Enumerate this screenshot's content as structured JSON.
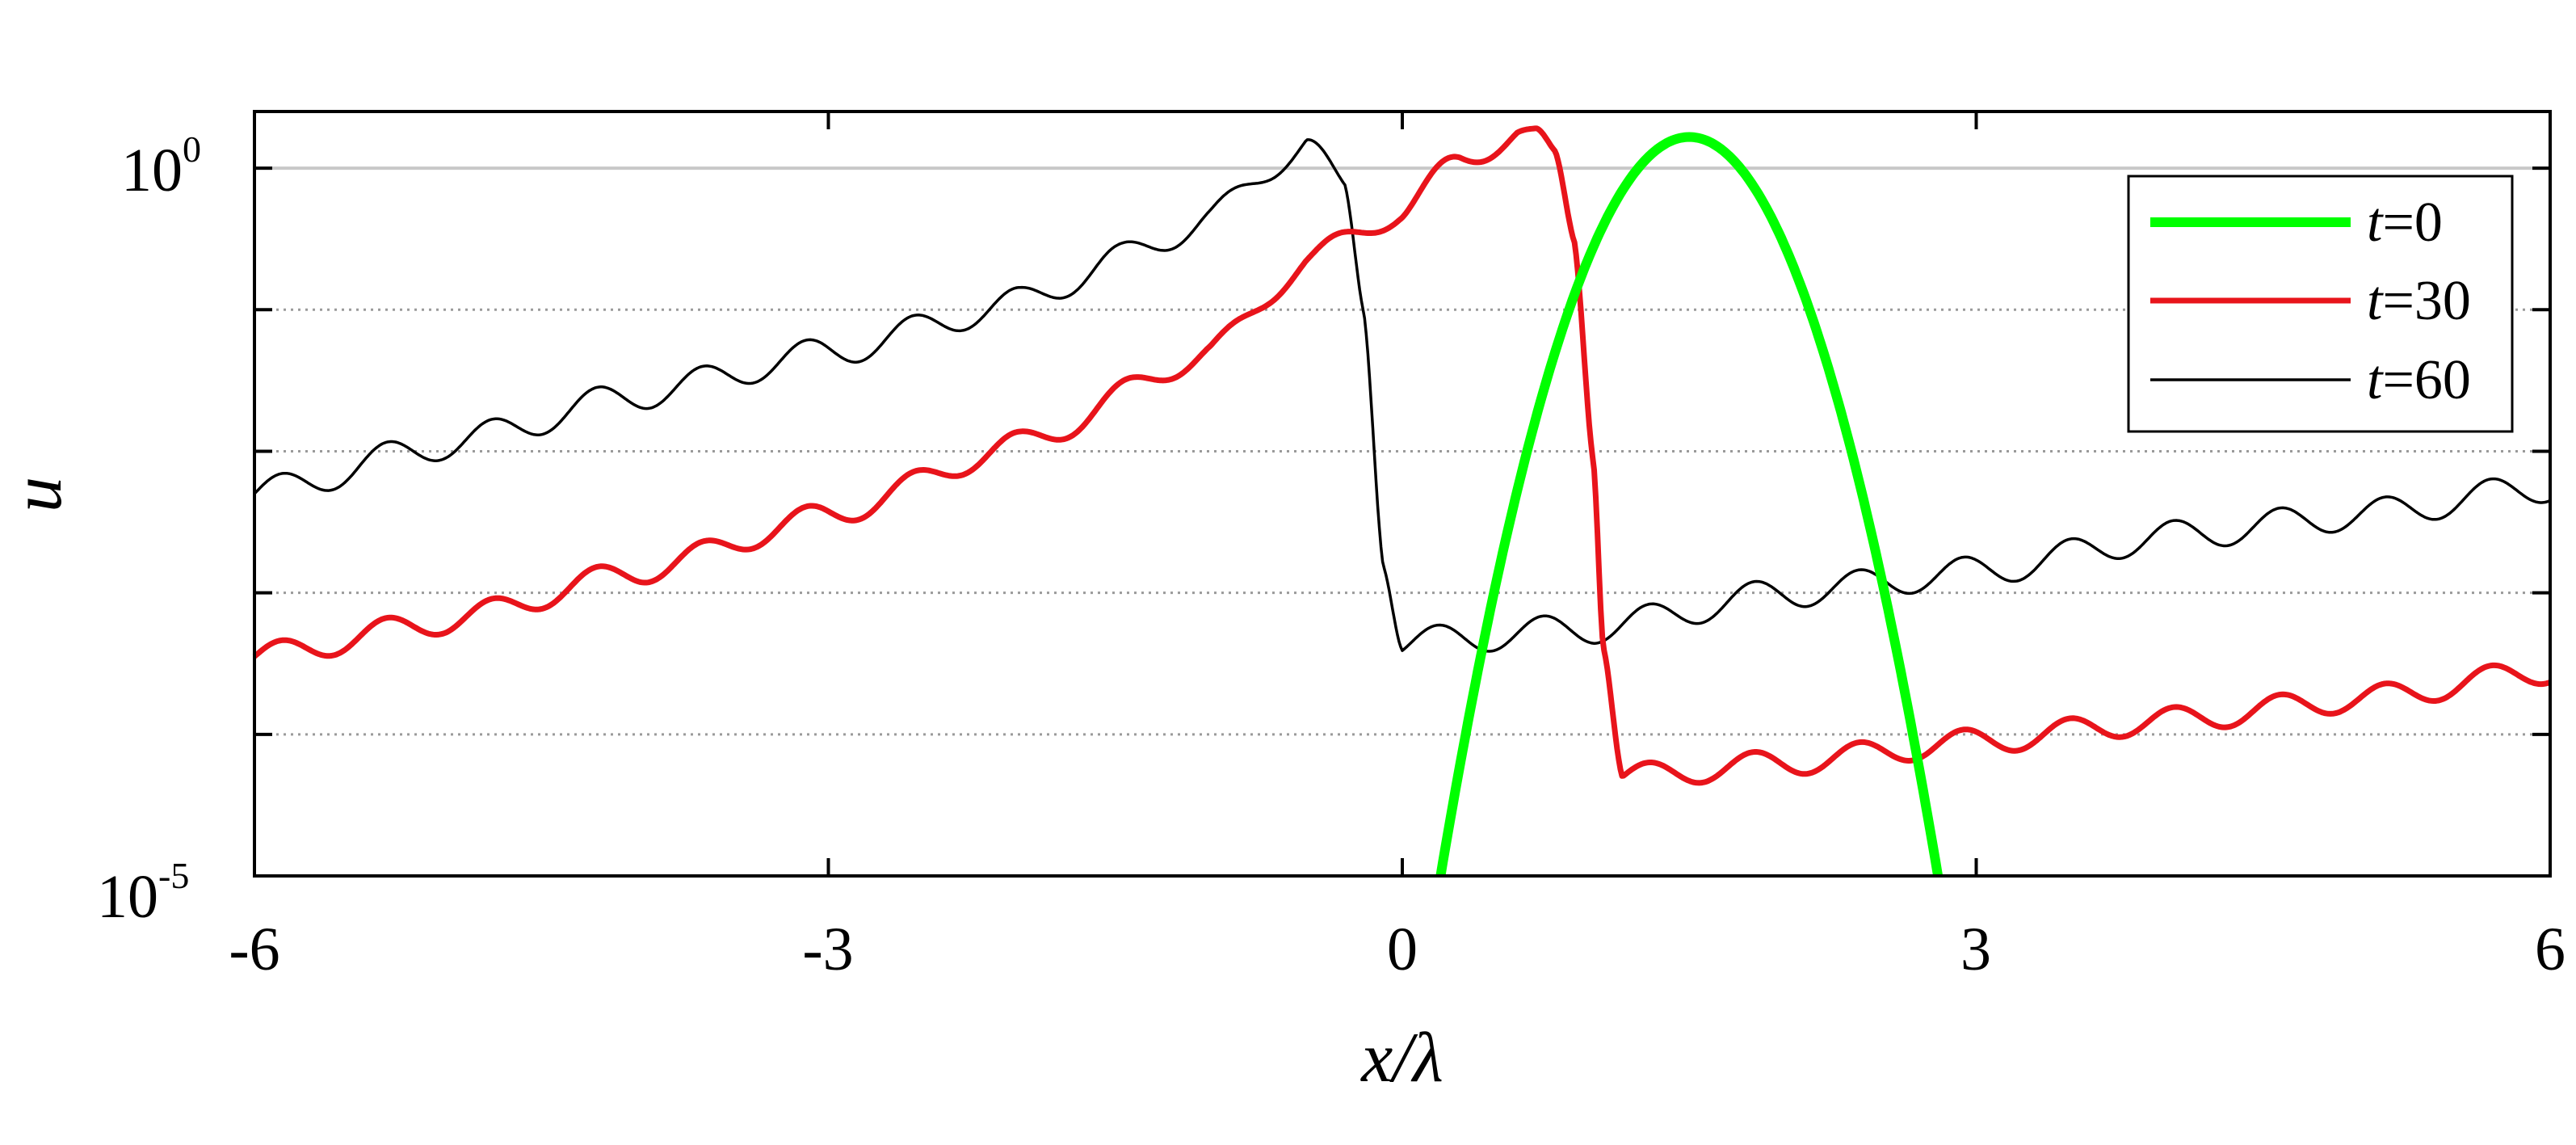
{
  "chart_data": {
    "type": "line",
    "xlabel": "x/λ",
    "ylabel": "u",
    "xlim": [
      -6,
      6
    ],
    "ylim_log10": [
      -5,
      0.4
    ],
    "y_scale": "log",
    "x_ticks": [
      "-6",
      "-3",
      "0",
      "3",
      "6"
    ],
    "y_tick_labels": [
      {
        "base": "10",
        "exp": "0",
        "log10": 0
      },
      {
        "base": "10",
        "exp": "-5",
        "log10": -5
      }
    ],
    "grid": {
      "y_major_solid_at_log10": 0,
      "y_minor_dotted_at_log10": [
        -1,
        -2,
        -3,
        -4
      ]
    },
    "legend": {
      "position": "top-right",
      "entries": [
        {
          "var": "t",
          "value": "=0"
        },
        {
          "var": "t",
          "value": "=30"
        },
        {
          "var": "t",
          "value": "=60"
        }
      ]
    },
    "series": [
      {
        "name": "t=0",
        "color": "#00ff00",
        "kind": "parabola_log",
        "peak_x": 1.5,
        "peak_log10": 0.22,
        "root_left_x": 0.2,
        "root_right_x": 2.8,
        "root_log10": -5
      },
      {
        "name": "t=30",
        "color": "#e8141b",
        "points": [
          [
            -6,
            -3.45
          ],
          [
            -5,
            -3.2
          ],
          [
            -4,
            -2.85
          ],
          [
            -3,
            -2.45
          ],
          [
            -2,
            -1.95
          ],
          [
            -1,
            -1.3
          ],
          [
            -0.5,
            -0.65
          ],
          [
            0,
            -0.3
          ],
          [
            0.3,
            0.05
          ],
          [
            0.6,
            0.25
          ],
          [
            0.7,
            0.2
          ],
          [
            0.8,
            0.05
          ],
          [
            0.9,
            -0.5
          ],
          [
            1.0,
            -2.0
          ],
          [
            1.05,
            -3.3
          ],
          [
            1.15,
            -4.3
          ],
          [
            2,
            -4.2
          ],
          [
            3,
            -4.05
          ],
          [
            4,
            -3.9
          ],
          [
            5,
            -3.75
          ],
          [
            6,
            -3.55
          ]
        ],
        "wiggle_amp": 0.1,
        "wiggle_period": 0.55
      },
      {
        "name": "t=60",
        "color": "#000000",
        "points": [
          [
            -6,
            -2.3
          ],
          [
            -5,
            -1.95
          ],
          [
            -4,
            -1.6
          ],
          [
            -3,
            -1.3
          ],
          [
            -2,
            -0.95
          ],
          [
            -1.5,
            -0.65
          ],
          [
            -1,
            -0.35
          ],
          [
            -0.5,
            0.2
          ],
          [
            -0.3,
            -0.2
          ],
          [
            -0.2,
            -1.0
          ],
          [
            -0.1,
            -2.7
          ],
          [
            0,
            -3.35
          ],
          [
            1,
            -3.25
          ],
          [
            2,
            -3.0
          ],
          [
            3,
            -2.85
          ],
          [
            4,
            -2.6
          ],
          [
            5,
            -2.45
          ],
          [
            6,
            -2.25
          ]
        ],
        "wiggle_amp": 0.12,
        "wiggle_period": 0.55
      }
    ]
  }
}
